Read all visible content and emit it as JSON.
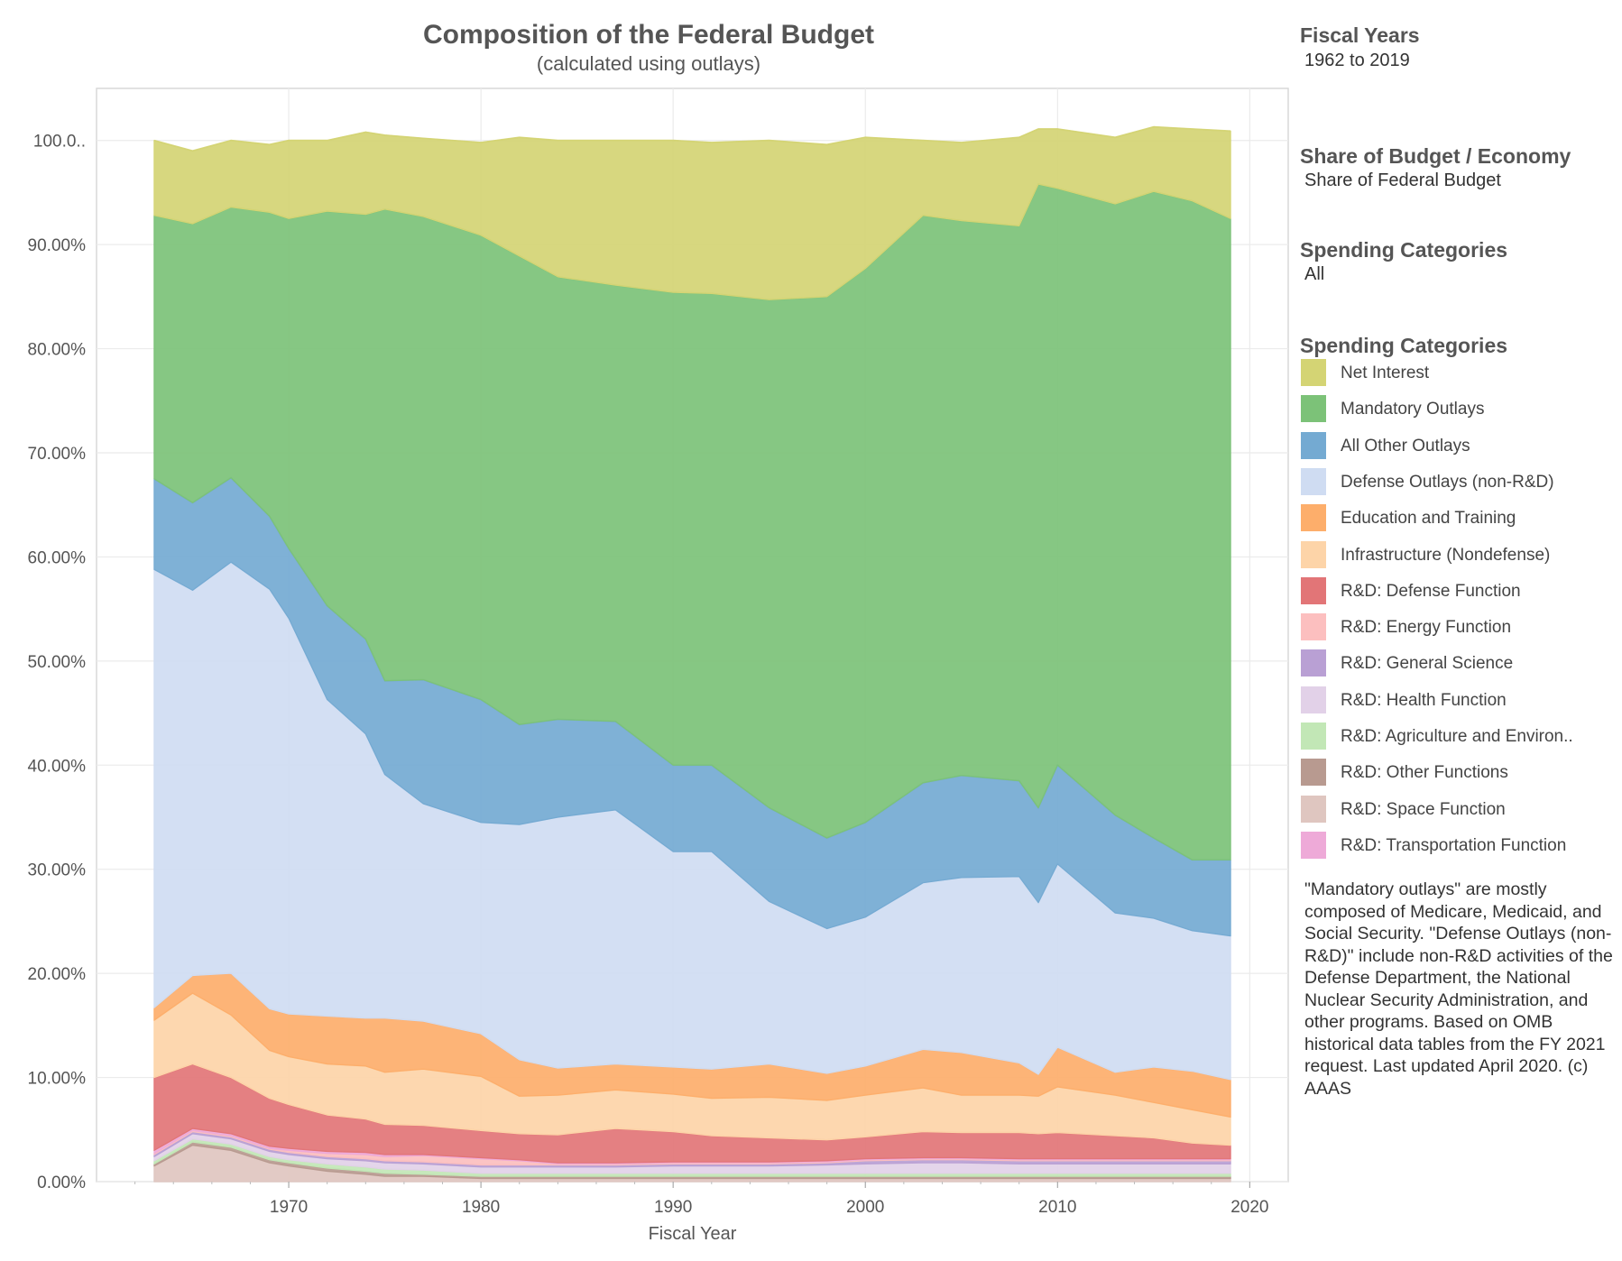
{
  "header": {
    "title": "Composition of the Federal Budget",
    "subtitle": "(calculated using outlays)"
  },
  "filters": [
    {
      "heading": "Fiscal Years",
      "value": "1962 to 2019"
    },
    {
      "heading": "Share of Budget / Economy",
      "value": "Share of Federal Budget"
    },
    {
      "heading": "Spending Categories",
      "value": "All"
    }
  ],
  "legend": {
    "title": "Spending Categories",
    "items": [
      {
        "label": "Net Interest",
        "color": "#d4d474"
      },
      {
        "label": "Mandatory Outlays",
        "color": "#7cc278"
      },
      {
        "label": "All Other Outlays",
        "color": "#74aad2"
      },
      {
        "label": "Defense Outlays (non-R&D)",
        "color": "#cfdcf2"
      },
      {
        "label": "Education and Training",
        "color": "#fdae6b"
      },
      {
        "label": "Infrastructure (Nondefense)",
        "color": "#fdd4a8"
      },
      {
        "label": "R&D: Defense Function",
        "color": "#e27577"
      },
      {
        "label": "R&D: Energy Function",
        "color": "#fcbfbf"
      },
      {
        "label": "R&D: General Science",
        "color": "#b9a0d4"
      },
      {
        "label": "R&D: Health Function",
        "color": "#e2d1e8"
      },
      {
        "label": "R&D: Agriculture and Environ..",
        "color": "#c2e7b6"
      },
      {
        "label": "R&D: Other Functions",
        "color": "#b89a90"
      },
      {
        "label": "R&D: Space Function",
        "color": "#dfc6c0"
      },
      {
        "label": "R&D: Transportation Function",
        "color": "#eeaad8"
      }
    ]
  },
  "note": "\"Mandatory outlays\" are mostly composed of Medicare, Medicaid, and Social Security. \"Defense Outlays (non-R&D)\" include non-R&D activities of the Defense Department, the National Nuclear Security Administration, and other programs. Based on OMB historical data tables from the FY 2021 request. Last updated April 2020.   (c) AAAS",
  "chart_data": {
    "type": "area",
    "stacked": true,
    "xlabel": "Fiscal Year",
    "ylabel": "",
    "xlim": [
      1960,
      2022
    ],
    "ylim": [
      0,
      100
    ],
    "x_ticks": [
      1970,
      1980,
      1990,
      2000,
      2010,
      2020
    ],
    "y_ticks": [
      0,
      10,
      20,
      30,
      40,
      50,
      60,
      70,
      80,
      90,
      100
    ],
    "y_tick_labels": [
      "0.00%",
      "10.00%",
      "20.00%",
      "30.00%",
      "40.00%",
      "50.00%",
      "60.00%",
      "70.00%",
      "80.00%",
      "90.00%",
      "100.0.."
    ],
    "grid": true,
    "x": [
      1963,
      1965,
      1967,
      1969,
      1970,
      1972,
      1974,
      1975,
      1977,
      1980,
      1982,
      1984,
      1987,
      1990,
      1992,
      1995,
      1998,
      2000,
      2003,
      2005,
      2008,
      2009,
      2010,
      2013,
      2015,
      2017,
      2019
    ],
    "series": [
      {
        "name": "R&D: Space Function",
        "values": [
          1.5,
          3.5,
          3.0,
          1.8,
          1.5,
          1.0,
          0.7,
          0.5,
          0.5,
          0.3,
          0.3,
          0.3,
          0.3,
          0.3,
          0.3,
          0.3,
          0.3,
          0.3,
          0.3,
          0.3,
          0.3,
          0.3,
          0.3,
          0.3,
          0.3,
          0.3,
          0.3
        ]
      },
      {
        "name": "R&D: Other Functions",
        "values": [
          0.2,
          0.3,
          0.3,
          0.3,
          0.3,
          0.3,
          0.3,
          0.3,
          0.2,
          0.2,
          0.2,
          0.2,
          0.2,
          0.2,
          0.2,
          0.2,
          0.2,
          0.2,
          0.2,
          0.2,
          0.2,
          0.2,
          0.2,
          0.2,
          0.2,
          0.2,
          0.2
        ]
      },
      {
        "name": "R&D: Agriculture and Environ..",
        "values": [
          0.3,
          0.3,
          0.3,
          0.3,
          0.3,
          0.4,
          0.4,
          0.4,
          0.4,
          0.3,
          0.3,
          0.3,
          0.3,
          0.3,
          0.3,
          0.3,
          0.3,
          0.3,
          0.3,
          0.3,
          0.3,
          0.3,
          0.3,
          0.3,
          0.3,
          0.3,
          0.3
        ]
      },
      {
        "name": "R&D: Health Function",
        "values": [
          0.4,
          0.5,
          0.5,
          0.5,
          0.5,
          0.5,
          0.6,
          0.6,
          0.6,
          0.6,
          0.6,
          0.6,
          0.6,
          0.7,
          0.7,
          0.7,
          0.8,
          0.9,
          1.0,
          1.0,
          0.9,
          0.9,
          0.9,
          0.9,
          0.9,
          0.9,
          0.9
        ]
      },
      {
        "name": "R&D: General Science",
        "values": [
          0.2,
          0.2,
          0.2,
          0.2,
          0.2,
          0.2,
          0.2,
          0.2,
          0.2,
          0.2,
          0.2,
          0.2,
          0.2,
          0.2,
          0.2,
          0.2,
          0.2,
          0.3,
          0.3,
          0.3,
          0.3,
          0.3,
          0.3,
          0.3,
          0.3,
          0.3,
          0.3
        ]
      },
      {
        "name": "R&D: Energy Function",
        "values": [
          0.1,
          0.1,
          0.1,
          0.1,
          0.2,
          0.3,
          0.4,
          0.4,
          0.6,
          0.6,
          0.4,
          0.1,
          0.1,
          0.1,
          0.1,
          0.1,
          0.1,
          0.1,
          0.1,
          0.1,
          0.1,
          0.1,
          0.1,
          0.1,
          0.1,
          0.1,
          0.1
        ]
      },
      {
        "name": "R&D: Transportation Function",
        "values": [
          0.3,
          0.2,
          0.2,
          0.2,
          0.2,
          0.2,
          0.2,
          0.2,
          0.1,
          0.1,
          0.1,
          0.1,
          0.1,
          0.1,
          0.1,
          0.1,
          0.1,
          0.1,
          0.1,
          0.1,
          0.1,
          0.1,
          0.1,
          0.1,
          0.1,
          0.1,
          0.1
        ]
      },
      {
        "name": "R&D: Defense Function",
        "values": [
          7.0,
          6.2,
          5.4,
          4.6,
          4.2,
          3.5,
          3.2,
          2.9,
          2.8,
          2.6,
          2.5,
          2.7,
          3.3,
          2.9,
          2.5,
          2.3,
          2.0,
          2.1,
          2.5,
          2.4,
          2.5,
          2.4,
          2.5,
          2.2,
          2.0,
          1.5,
          1.3
        ]
      },
      {
        "name": "Infrastructure (Nondefense)",
        "values": [
          5.5,
          6.8,
          6.0,
          4.6,
          4.6,
          4.9,
          5.1,
          5.0,
          5.4,
          5.2,
          3.6,
          3.8,
          3.7,
          3.6,
          3.6,
          3.9,
          3.8,
          4.0,
          4.2,
          3.6,
          3.6,
          3.6,
          4.4,
          3.9,
          3.4,
          3.2,
          2.7
        ]
      },
      {
        "name": "Education and Training",
        "values": [
          1.2,
          1.7,
          4.0,
          4.0,
          4.1,
          4.6,
          4.6,
          5.2,
          4.6,
          4.1,
          3.5,
          2.6,
          2.5,
          2.6,
          2.8,
          3.2,
          2.6,
          2.8,
          3.7,
          4.1,
          3.1,
          2.1,
          3.8,
          2.2,
          3.4,
          3.7,
          3.6
        ]
      },
      {
        "name": "Defense Outlays (non-R&D)",
        "values": [
          42.1,
          37.0,
          39.5,
          40.3,
          38.0,
          30.4,
          27.3,
          23.4,
          20.9,
          20.3,
          22.6,
          24.1,
          24.4,
          20.7,
          20.9,
          15.6,
          13.9,
          14.3,
          16.0,
          16.8,
          17.9,
          16.5,
          17.6,
          15.3,
          14.3,
          13.5,
          13.8
        ]
      },
      {
        "name": "All Other Outlays",
        "values": [
          8.7,
          8.4,
          8.1,
          7.0,
          6.7,
          9.0,
          9.1,
          9.0,
          11.9,
          11.8,
          9.6,
          9.4,
          8.5,
          8.3,
          8.3,
          9.0,
          8.7,
          9.1,
          9.6,
          9.8,
          9.2,
          9.1,
          9.5,
          9.4,
          7.7,
          6.8,
          7.3
        ]
      },
      {
        "name": "Mandatory Outlays",
        "values": [
          25.3,
          26.8,
          26.0,
          29.2,
          31.7,
          37.9,
          40.8,
          45.3,
          44.5,
          44.6,
          45.0,
          42.5,
          41.9,
          45.4,
          45.3,
          48.8,
          52.0,
          53.2,
          54.5,
          53.3,
          53.3,
          59.9,
          55.4,
          58.7,
          62.1,
          63.3,
          61.6
        ]
      },
      {
        "name": "Net Interest",
        "values": [
          7.2,
          7.0,
          6.4,
          6.5,
          7.5,
          6.8,
          7.9,
          7.1,
          7.5,
          8.9,
          11.4,
          13.1,
          13.9,
          14.6,
          14.5,
          15.3,
          14.6,
          12.6,
          7.2,
          7.5,
          8.5,
          5.3,
          5.7,
          6.4,
          6.2,
          6.9,
          8.4
        ]
      }
    ]
  }
}
